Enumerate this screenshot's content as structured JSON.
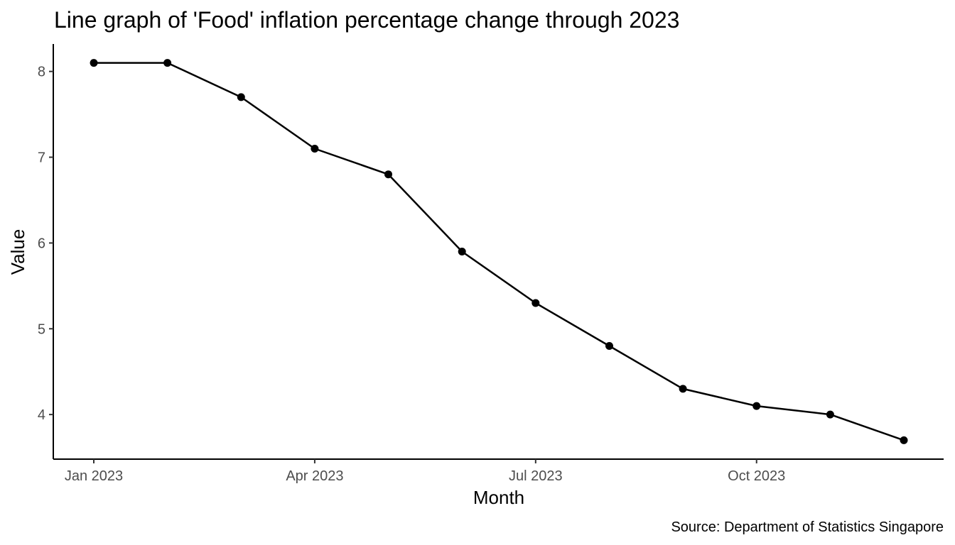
{
  "chart_data": {
    "type": "line",
    "title": "Line graph of 'Food' inflation percentage change through 2023",
    "xlabel": "Month",
    "ylabel": "Value",
    "caption": "Source: Department of Statistics Singapore",
    "x": [
      "2023-01",
      "2023-02",
      "2023-03",
      "2023-04",
      "2023-05",
      "2023-06",
      "2023-07",
      "2023-08",
      "2023-09",
      "2023-10",
      "2023-11",
      "2023-12"
    ],
    "values": [
      8.1,
      8.1,
      7.7,
      7.1,
      6.8,
      5.9,
      5.3,
      4.8,
      4.3,
      4.1,
      4.0,
      3.7
    ],
    "x_ticks": [
      {
        "x": "2023-01",
        "label": "Jan 2023"
      },
      {
        "x": "2023-04",
        "label": "Apr 2023"
      },
      {
        "x": "2023-07",
        "label": "Jul 2023"
      },
      {
        "x": "2023-10",
        "label": "Oct 2023"
      }
    ],
    "y_ticks": [
      4,
      5,
      6,
      7,
      8
    ],
    "ylim": [
      3.48,
      8.32
    ],
    "grid": false,
    "legend": "none",
    "line_color": "#000000",
    "point_color": "#000000"
  }
}
